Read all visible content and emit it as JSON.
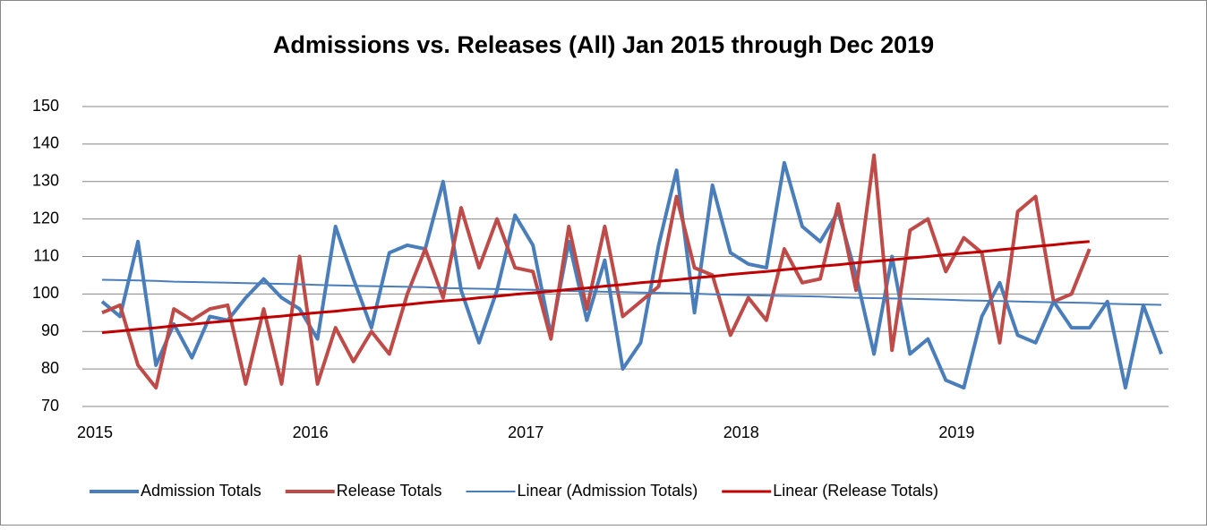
{
  "chart_data": {
    "type": "line",
    "title": "Admissions vs. Releases (All) Jan 2015 through Dec 2019",
    "categories": [
      "2015",
      null,
      null,
      null,
      null,
      null,
      null,
      null,
      null,
      null,
      null,
      null,
      "2016",
      null,
      null,
      null,
      null,
      null,
      null,
      null,
      null,
      null,
      null,
      null,
      "2017",
      null,
      null,
      null,
      null,
      null,
      null,
      null,
      null,
      null,
      null,
      null,
      "2018",
      null,
      null,
      null,
      null,
      null,
      null,
      null,
      null,
      null,
      null,
      null,
      "2019",
      null,
      null,
      null,
      null,
      null,
      null,
      null,
      null,
      null,
      null,
      null
    ],
    "series": [
      {
        "name": "Admission Totals",
        "color": "#4a7ebb",
        "width": 4,
        "values": [
          98,
          94,
          114,
          81,
          92,
          83,
          94,
          93,
          99,
          104,
          99,
          96,
          88,
          118,
          104,
          91,
          111,
          113,
          112,
          130,
          101,
          87,
          101,
          121,
          113,
          89,
          114,
          93,
          109,
          80,
          87,
          113,
          133,
          95,
          129,
          111,
          108,
          107,
          135,
          118,
          114,
          122,
          105,
          84,
          110,
          84,
          88,
          77,
          75,
          94,
          103,
          89,
          87,
          98,
          91,
          91,
          98,
          75,
          97,
          84
        ]
      },
      {
        "name": "Release Totals",
        "color": "#be4b48",
        "width": 4,
        "values": [
          95,
          97,
          81,
          75,
          96,
          93,
          96,
          97,
          76,
          96,
          76,
          110,
          76,
          91,
          82,
          90,
          84,
          100,
          112,
          99,
          123,
          107,
          120,
          107,
          106,
          88,
          118,
          96,
          118,
          94,
          98,
          102,
          126,
          107,
          105,
          89,
          99,
          93,
          112,
          103,
          104,
          124,
          101,
          137,
          85,
          117,
          120,
          106,
          115,
          111,
          87,
          122,
          126,
          98,
          100,
          112,
          null,
          null,
          null,
          null
        ]
      },
      {
        "name": "Linear (Admission Totals)",
        "color": "#4a7ebb",
        "width": 2,
        "values": [
          103.8,
          103.7,
          103.6,
          103.5,
          103.3,
          103.2,
          103.1,
          103.0,
          102.9,
          102.8,
          102.7,
          102.6,
          102.4,
          102.3,
          102.2,
          102.1,
          102.0,
          101.9,
          101.8,
          101.6,
          101.5,
          101.4,
          101.3,
          101.2,
          101.1,
          101.0,
          100.8,
          100.7,
          100.6,
          100.5,
          100.4,
          100.3,
          100.2,
          100.1,
          99.9,
          99.8,
          99.7,
          99.6,
          99.5,
          99.4,
          99.3,
          99.1,
          99.0,
          98.9,
          98.8,
          98.7,
          98.6,
          98.5,
          98.3,
          98.2,
          98.1,
          98.0,
          97.9,
          97.8,
          97.7,
          97.6,
          97.4,
          97.3,
          97.2,
          97.1
        ]
      },
      {
        "name": "Linear (Release Totals)",
        "color": "#c00000",
        "width": 3,
        "values": [
          89.7,
          90.1,
          90.6,
          91.0,
          91.5,
          91.9,
          92.4,
          92.8,
          93.2,
          93.7,
          94.1,
          94.6,
          95.0,
          95.4,
          95.9,
          96.3,
          96.8,
          97.2,
          97.7,
          98.1,
          98.5,
          99.0,
          99.4,
          99.9,
          100.3,
          100.7,
          101.2,
          101.6,
          102.1,
          102.5,
          103.0,
          103.4,
          103.8,
          104.3,
          104.7,
          105.2,
          105.6,
          106.0,
          106.5,
          106.9,
          107.4,
          107.8,
          108.3,
          108.7,
          109.1,
          109.6,
          110.0,
          110.5,
          110.9,
          111.3,
          111.8,
          112.2,
          112.7,
          113.1,
          113.6,
          114.0,
          null,
          null,
          null,
          null
        ]
      }
    ],
    "ylim": [
      70,
      150
    ],
    "yticks": [
      70,
      80,
      90,
      100,
      110,
      120,
      130,
      140,
      150
    ],
    "grid": true,
    "legend": "bottom"
  }
}
